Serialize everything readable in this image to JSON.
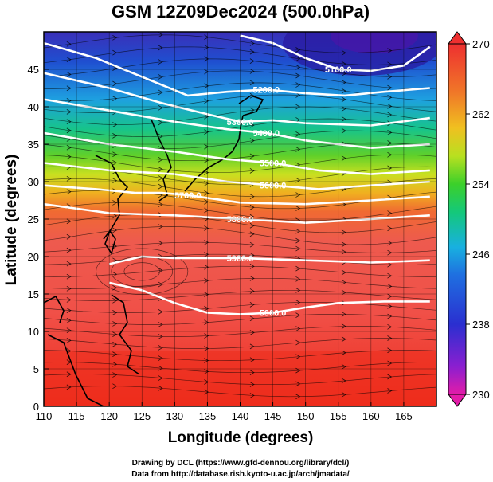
{
  "title": "GSM 12Z09Dec2024 (500.0hPa)",
  "xlabel": "Longitude (degrees)",
  "ylabel": "Latitude  (degrees)",
  "credits": {
    "line1": "Drawing by DCL (https://www.gfd-dennou.org/library/dcl/)",
    "line2": "Data from http://database.rish.kyoto-u.ac.jp/arch/jmadata/"
  },
  "map": {
    "xlim": [
      110,
      170
    ],
    "ylim": [
      0,
      50
    ],
    "xticks": [
      "110",
      "115",
      "120",
      "125",
      "130",
      "135",
      "140",
      "145",
      "150",
      "155",
      "160",
      "165"
    ],
    "yticks": [
      "0",
      "5",
      "10",
      "15",
      "20",
      "25",
      "30",
      "35",
      "40",
      "45"
    ],
    "contour_labels": [
      "5100.0",
      "5200.0",
      "5300.0",
      "5400.0",
      "5500.0",
      "5600.0",
      "5700.0",
      "5800.0",
      "5900.0"
    ],
    "colorbar": {
      "min": 230,
      "max": 270,
      "ticks": [
        "230",
        "238",
        "246",
        "254",
        "262",
        "270"
      ]
    }
  },
  "chart_data": {
    "type": "heatmap",
    "title": "GSM 12Z09Dec2024 (500.0hPa)",
    "xlabel": "Longitude (degrees)",
    "ylabel": "Latitude  (degrees)",
    "xlim": [
      110,
      170
    ],
    "ylim": [
      0,
      50
    ],
    "contours": [
      {
        "level": 5100,
        "label": "5100.0",
        "points": [
          [
            140,
            49.5
          ],
          [
            145,
            48.5
          ],
          [
            150,
            46.5
          ],
          [
            155,
            45
          ],
          [
            160,
            44.8
          ],
          [
            165,
            45.5
          ],
          [
            169,
            48
          ]
        ]
      },
      {
        "level": 5200,
        "label": "5200.0",
        "points": [
          [
            110,
            48.5
          ],
          [
            118,
            46.5
          ],
          [
            125,
            44
          ],
          [
            132,
            41.5
          ],
          [
            138,
            42
          ],
          [
            144,
            42.3
          ],
          [
            150,
            41.8
          ],
          [
            156,
            41.5
          ],
          [
            162,
            42
          ],
          [
            169,
            42.5
          ]
        ]
      },
      {
        "level": 5300,
        "label": "5300.0",
        "points": [
          [
            110,
            44.5
          ],
          [
            120,
            42.5
          ],
          [
            128,
            40.5
          ],
          [
            135,
            39
          ],
          [
            140,
            38
          ],
          [
            145,
            38.2
          ],
          [
            150,
            37.8
          ],
          [
            160,
            37.5
          ],
          [
            169,
            38.5
          ]
        ]
      },
      {
        "level": 5400,
        "label": "5400.0",
        "points": [
          [
            110,
            41
          ],
          [
            120,
            39.5
          ],
          [
            130,
            38
          ],
          [
            138,
            37
          ],
          [
            144,
            36.5
          ],
          [
            150,
            35.5
          ],
          [
            160,
            34.5
          ],
          [
            169,
            35
          ]
        ]
      },
      {
        "level": 5500,
        "label": "5500.0",
        "points": [
          [
            110,
            36.5
          ],
          [
            120,
            35
          ],
          [
            130,
            34
          ],
          [
            138,
            33
          ],
          [
            145,
            32.5
          ],
          [
            152,
            31.5
          ],
          [
            160,
            31
          ],
          [
            169,
            31.5
          ]
        ]
      },
      {
        "level": 5600,
        "label": "5600.0",
        "points": [
          [
            110,
            32.5
          ],
          [
            120,
            31.5
          ],
          [
            130,
            31
          ],
          [
            138,
            30
          ],
          [
            145,
            29.5
          ],
          [
            152,
            29
          ],
          [
            160,
            29.5
          ],
          [
            169,
            30
          ]
        ]
      },
      {
        "level": 5700,
        "label": "5700.0",
        "points": [
          [
            110,
            29.5
          ],
          [
            118,
            29
          ],
          [
            124,
            28.5
          ],
          [
            128,
            28.5
          ],
          [
            132,
            28.2
          ],
          [
            140,
            27.2
          ],
          [
            150,
            27
          ],
          [
            160,
            27.5
          ],
          [
            169,
            28
          ]
        ]
      },
      {
        "level": 5800,
        "label": "5800.0",
        "points": [
          [
            110,
            27
          ],
          [
            120,
            25.8
          ],
          [
            130,
            25.5
          ],
          [
            140,
            25
          ],
          [
            150,
            24.5
          ],
          [
            160,
            25
          ],
          [
            169,
            25.5
          ]
        ]
      },
      {
        "level": 5900,
        "label": "5900.0",
        "points": [
          [
            120,
            19
          ],
          [
            125,
            20
          ],
          [
            130,
            19.8
          ],
          [
            140,
            19.8
          ],
          [
            150,
            19.5
          ],
          [
            160,
            19.2
          ],
          [
            169,
            19.5
          ]
        ]
      },
      {
        "level": 5900,
        "label": "5900.0",
        "points": [
          [
            120,
            16.5
          ],
          [
            125,
            15.5
          ],
          [
            130,
            13.8
          ],
          [
            135,
            12.5
          ],
          [
            140,
            12.3
          ],
          [
            145,
            12.5
          ],
          [
            150,
            13.2
          ],
          [
            155,
            13.8
          ],
          [
            162,
            14
          ],
          [
            169,
            14
          ]
        ]
      }
    ],
    "temperature_colorbar": {
      "min": 230,
      "max": 270,
      "ticks": [
        230,
        238,
        246,
        254,
        262,
        270
      ]
    }
  }
}
